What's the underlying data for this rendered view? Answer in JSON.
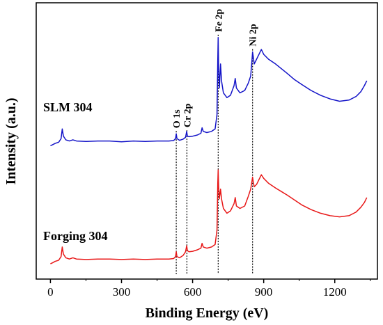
{
  "chart_data": {
    "type": "line",
    "xlabel": "Binding Energy (eV)",
    "ylabel": "Intensity (a.u.)",
    "xlim": [
      -60,
      1380
    ],
    "ylim": [
      0,
      10
    ],
    "x_ticks": [
      0,
      300,
      600,
      900,
      1200
    ],
    "x_tick_labels": [
      "0",
      "300",
      "600",
      "900",
      "1200"
    ],
    "grid": false,
    "series": [
      {
        "name": "SLM 304",
        "color": "#1414c8",
        "points": [
          [
            0,
            5.1
          ],
          [
            10,
            5.15
          ],
          [
            20,
            5.2
          ],
          [
            35,
            5.25
          ],
          [
            45,
            5.4
          ],
          [
            50,
            5.8
          ],
          [
            55,
            5.5
          ],
          [
            65,
            5.35
          ],
          [
            80,
            5.3
          ],
          [
            95,
            5.35
          ],
          [
            110,
            5.3
          ],
          [
            150,
            5.28
          ],
          [
            200,
            5.3
          ],
          [
            250,
            5.3
          ],
          [
            300,
            5.27
          ],
          [
            350,
            5.3
          ],
          [
            400,
            5.28
          ],
          [
            450,
            5.3
          ],
          [
            500,
            5.3
          ],
          [
            520,
            5.32
          ],
          [
            528,
            5.4
          ],
          [
            531,
            5.6
          ],
          [
            534,
            5.4
          ],
          [
            545,
            5.33
          ],
          [
            560,
            5.38
          ],
          [
            570,
            5.45
          ],
          [
            575,
            5.7
          ],
          [
            578,
            5.5
          ],
          [
            585,
            5.48
          ],
          [
            600,
            5.5
          ],
          [
            620,
            5.55
          ],
          [
            635,
            5.62
          ],
          [
            640,
            5.85
          ],
          [
            645,
            5.7
          ],
          [
            660,
            5.65
          ],
          [
            680,
            5.7
          ],
          [
            695,
            5.8
          ],
          [
            703,
            6.4
          ],
          [
            706,
            8.6
          ],
          [
            708,
            9.6
          ],
          [
            710,
            8.3
          ],
          [
            713,
            7.5
          ],
          [
            718,
            8.5
          ],
          [
            722,
            7.8
          ],
          [
            730,
            7.3
          ],
          [
            745,
            7.1
          ],
          [
            760,
            7.2
          ],
          [
            775,
            7.6
          ],
          [
            780,
            7.9
          ],
          [
            785,
            7.5
          ],
          [
            800,
            7.3
          ],
          [
            820,
            7.4
          ],
          [
            835,
            7.7
          ],
          [
            845,
            8.0
          ],
          [
            850,
            8.6
          ],
          [
            853,
            9.0
          ],
          [
            856,
            8.8
          ],
          [
            860,
            8.5
          ],
          [
            870,
            8.7
          ],
          [
            880,
            8.9
          ],
          [
            890,
            9.1
          ],
          [
            900,
            8.9
          ],
          [
            920,
            8.7
          ],
          [
            950,
            8.5
          ],
          [
            975,
            8.3
          ],
          [
            1000,
            8.1
          ],
          [
            1030,
            7.85
          ],
          [
            1060,
            7.65
          ],
          [
            1100,
            7.4
          ],
          [
            1140,
            7.2
          ],
          [
            1180,
            7.05
          ],
          [
            1220,
            6.95
          ],
          [
            1260,
            7.0
          ],
          [
            1290,
            7.15
          ],
          [
            1310,
            7.35
          ],
          [
            1325,
            7.6
          ],
          [
            1335,
            7.8
          ]
        ]
      },
      {
        "name": "Forging 304",
        "color": "#e81818",
        "points": [
          [
            0,
            0.2
          ],
          [
            10,
            0.25
          ],
          [
            20,
            0.3
          ],
          [
            35,
            0.35
          ],
          [
            45,
            0.5
          ],
          [
            50,
            0.9
          ],
          [
            55,
            0.6
          ],
          [
            65,
            0.45
          ],
          [
            80,
            0.4
          ],
          [
            95,
            0.45
          ],
          [
            110,
            0.4
          ],
          [
            150,
            0.38
          ],
          [
            200,
            0.4
          ],
          [
            250,
            0.4
          ],
          [
            300,
            0.38
          ],
          [
            350,
            0.4
          ],
          [
            400,
            0.38
          ],
          [
            450,
            0.4
          ],
          [
            500,
            0.4
          ],
          [
            520,
            0.42
          ],
          [
            528,
            0.5
          ],
          [
            531,
            0.7
          ],
          [
            534,
            0.5
          ],
          [
            545,
            0.45
          ],
          [
            560,
            0.55
          ],
          [
            570,
            0.7
          ],
          [
            575,
            0.95
          ],
          [
            578,
            0.75
          ],
          [
            585,
            0.7
          ],
          [
            600,
            0.72
          ],
          [
            620,
            0.78
          ],
          [
            635,
            0.85
          ],
          [
            640,
            1.05
          ],
          [
            645,
            0.9
          ],
          [
            660,
            0.85
          ],
          [
            680,
            0.9
          ],
          [
            695,
            1.0
          ],
          [
            703,
            1.6
          ],
          [
            706,
            3.5
          ],
          [
            708,
            4.1
          ],
          [
            710,
            3.4
          ],
          [
            713,
            2.9
          ],
          [
            718,
            3.3
          ],
          [
            722,
            2.9
          ],
          [
            730,
            2.5
          ],
          [
            745,
            2.3
          ],
          [
            760,
            2.4
          ],
          [
            775,
            2.7
          ],
          [
            780,
            2.95
          ],
          [
            785,
            2.6
          ],
          [
            800,
            2.5
          ],
          [
            820,
            2.6
          ],
          [
            835,
            3.0
          ],
          [
            845,
            3.3
          ],
          [
            850,
            3.6
          ],
          [
            853,
            3.8
          ],
          [
            856,
            3.6
          ],
          [
            860,
            3.4
          ],
          [
            870,
            3.5
          ],
          [
            880,
            3.7
          ],
          [
            890,
            3.9
          ],
          [
            900,
            3.75
          ],
          [
            920,
            3.55
          ],
          [
            950,
            3.35
          ],
          [
            975,
            3.2
          ],
          [
            1000,
            3.05
          ],
          [
            1030,
            2.85
          ],
          [
            1060,
            2.65
          ],
          [
            1100,
            2.45
          ],
          [
            1140,
            2.3
          ],
          [
            1180,
            2.2
          ],
          [
            1220,
            2.15
          ],
          [
            1260,
            2.2
          ],
          [
            1290,
            2.35
          ],
          [
            1310,
            2.55
          ],
          [
            1325,
            2.75
          ],
          [
            1335,
            2.95
          ]
        ]
      }
    ],
    "peak_markers": [
      {
        "label": "O 1s",
        "x": 531
      },
      {
        "label": "Cr 2p",
        "x": 576
      },
      {
        "label": "Fe 2p",
        "x": 708
      },
      {
        "label": "Ni 2p",
        "x": 853
      }
    ]
  }
}
